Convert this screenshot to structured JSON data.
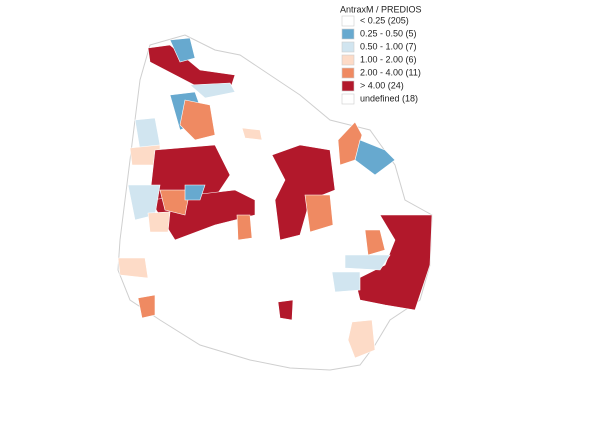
{
  "legend": {
    "title": "AntraxM / PREDIOS",
    "items": [
      {
        "label": "< 0.25 (205)",
        "color": "#ffffff"
      },
      {
        "label": "0.25 - 0.50 (5)",
        "color": "#67a9cf"
      },
      {
        "label": "0.50 - 1.00 (7)",
        "color": "#d1e5f0"
      },
      {
        "label": "1.00 - 2.00 (6)",
        "color": "#fddbc7"
      },
      {
        "label": "2.00 - 4.00 (11)",
        "color": "#ef8a62"
      },
      {
        "label": "> 4.00 (24)",
        "color": "#b2182b"
      },
      {
        "label": "undefined (18)",
        "color": "#ffffff"
      }
    ]
  }
}
